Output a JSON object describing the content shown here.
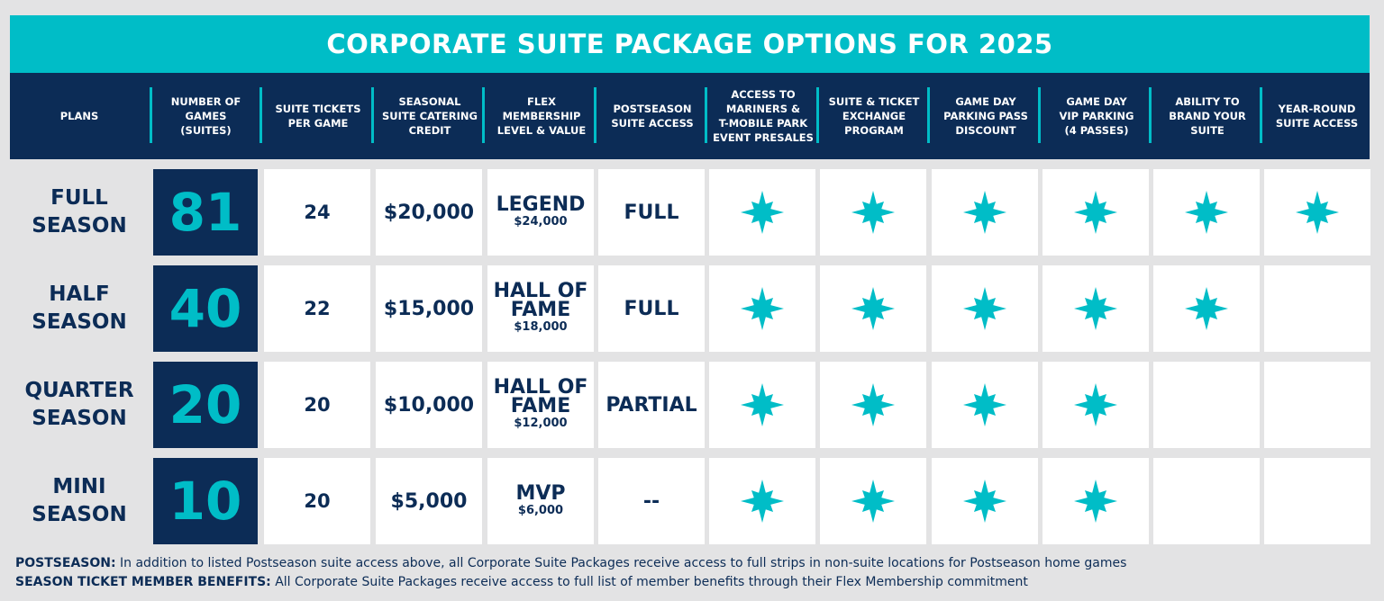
{
  "title": "CORPORATE SUITE PACKAGE OPTIONS FOR 2025",
  "headers": [
    "PLANS",
    "NUMBER OF\nGAMES\n(SUITES)",
    "SUITE TICKETS\nPER GAME",
    "SEASONAL\nSUITE CATERING\nCREDIT",
    "FLEX\nMEMBERSHIP\nLEVEL & VALUE",
    "POSTSEASON\nSUITE ACCESS",
    "ACCESS TO\nMARINERS &\nT-MOBILE PARK\nEVENT PRESALES",
    "SUITE & TICKET\nEXCHANGE\nPROGRAM",
    "GAME DAY\nPARKING PASS\nDISCOUNT",
    "GAME DAY\nVIP PARKING\n(4 PASSES)",
    "ABILITY TO\nBRAND YOUR\nSUITE",
    "YEAR-ROUND\nSUITE ACCESS"
  ],
  "plans": [
    {
      "name": "FULL\nSEASON",
      "games": "81",
      "tickets": "24",
      "credit": "$20,000",
      "level": "LEGEND",
      "level_value": "$24,000",
      "postseason": "FULL",
      "benefits": [
        true,
        true,
        true,
        true,
        true,
        true
      ]
    },
    {
      "name": "HALF\nSEASON",
      "games": "40",
      "tickets": "22",
      "credit": "$15,000",
      "level": "HALL OF\nFAME",
      "level_value": "$18,000",
      "postseason": "FULL",
      "benefits": [
        true,
        true,
        true,
        true,
        true,
        false
      ]
    },
    {
      "name": "QUARTER\nSEASON",
      "games": "20",
      "tickets": "20",
      "credit": "$10,000",
      "level": "HALL OF\nFAME",
      "level_value": "$12,000",
      "postseason": "PARTIAL",
      "benefits": [
        true,
        true,
        true,
        true,
        false,
        false
      ]
    },
    {
      "name": "MINI\nSEASON",
      "games": "10",
      "tickets": "20",
      "credit": "$5,000",
      "level": "MVP",
      "level_value": "$6,000",
      "postseason": "--",
      "benefits": [
        true,
        true,
        true,
        true,
        false,
        false
      ]
    }
  ],
  "footnotes": [
    {
      "label": "POSTSEASON:",
      "text": " In addition to listed Postseason suite access above, all Corporate Suite Packages receive access to full strips in non-suite locations for Postseason home games"
    },
    {
      "label": "SEASON TICKET MEMBER BENEFITS:",
      "text": " All Corporate Suite Packages receive access to full list of member benefits through their Flex Membership commitment"
    }
  ],
  "icons": {
    "benefit": "compass-star-icon"
  },
  "colors": {
    "navy": "#0c2c56",
    "teal": "#00bdc7",
    "background": "#e3e3e4"
  }
}
